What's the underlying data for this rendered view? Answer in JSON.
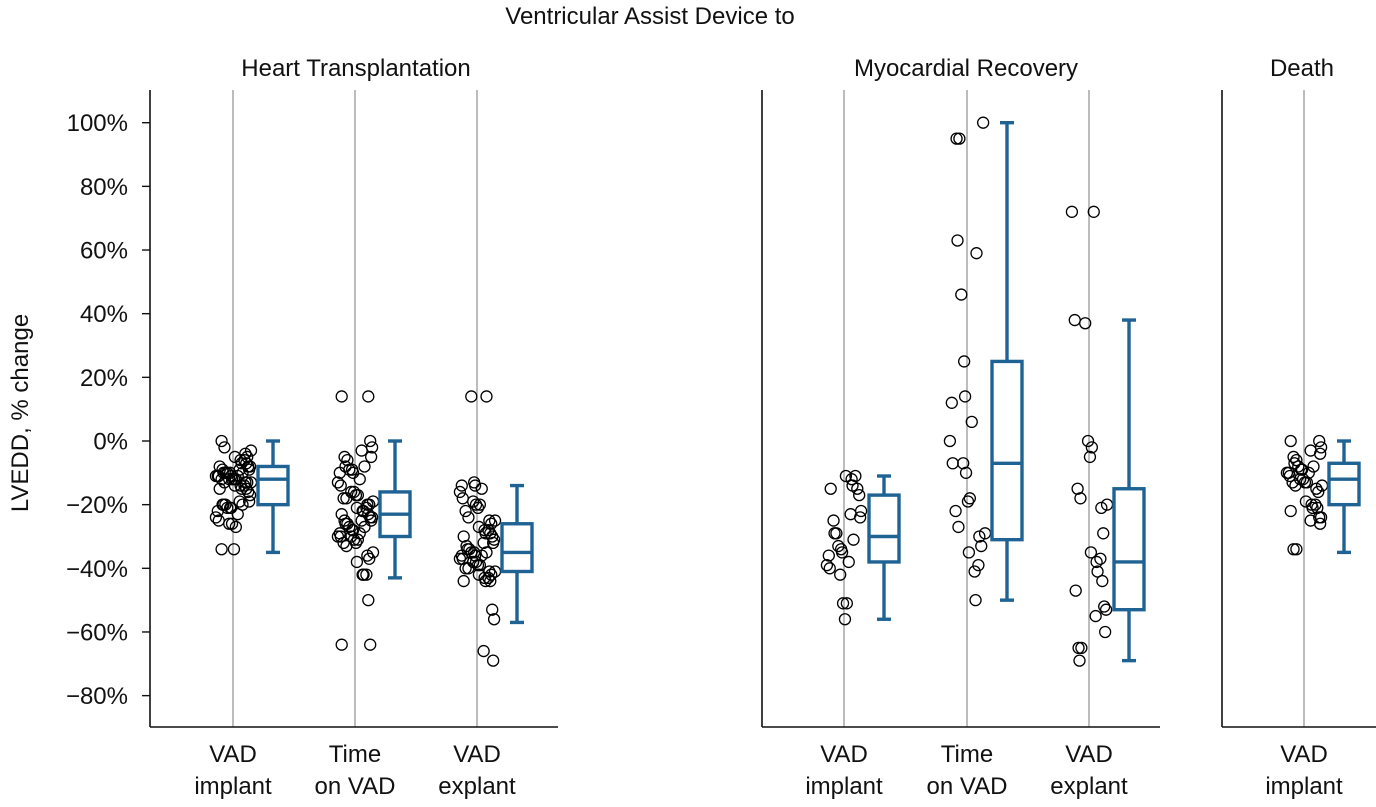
{
  "chart_data": {
    "type": "scatter",
    "title": "Ventricular Assist Device to",
    "ylabel": "LVEDD, % change",
    "ylim": [
      -90,
      110
    ],
    "yticks": [
      -80,
      -60,
      -40,
      -20,
      0,
      20,
      40,
      60,
      80,
      100
    ],
    "ytick_labels": [
      "−80%",
      "−60%",
      "−40%",
      "−20%",
      "0%",
      "20%",
      "40%",
      "60%",
      "80%",
      "100%"
    ],
    "colors": {
      "box": "#1f6394",
      "points": "#000000",
      "gridline": "#999999"
    },
    "panels": [
      {
        "title": "Heart Transplantation",
        "groups": [
          {
            "label": [
              "VAD",
              "implant"
            ],
            "points": [
              0,
              -2,
              -3,
              -4,
              -5,
              -5,
              -6,
              -6,
              -7,
              -7,
              -8,
              -8,
              -8,
              -9,
              -9,
              -9,
              -10,
              -10,
              -10,
              -10,
              -10,
              -11,
              -11,
              -11,
              -11,
              -11,
              -12,
              -12,
              -12,
              -12,
              -12,
              -13,
              -13,
              -13,
              -13,
              -14,
              -14,
              -14,
              -15,
              -15,
              -15,
              -16,
              -17,
              -19,
              -19,
              -20,
              -20,
              -20,
              -20,
              -21,
              -21,
              -21,
              -22,
              -23,
              -24,
              -25,
              -26,
              -26,
              -27,
              -34,
              -34
            ],
            "box": {
              "whisker_low": -35,
              "q1": -20,
              "median": -12,
              "q3": -8,
              "whisker_high": 0
            }
          },
          {
            "label": [
              "Time",
              "on VAD"
            ],
            "points": [
              14,
              14,
              0,
              -2,
              -3,
              -5,
              -5,
              -6,
              -8,
              -8,
              -9,
              -9,
              -10,
              -10,
              -12,
              -13,
              -14,
              -16,
              -16,
              -17,
              -17,
              -18,
              -18,
              -19,
              -20,
              -20,
              -21,
              -21,
              -22,
              -22,
              -23,
              -23,
              -24,
              -24,
              -25,
              -25,
              -25,
              -26,
              -26,
              -27,
              -27,
              -28,
              -28,
              -29,
              -29,
              -30,
              -30,
              -30,
              -31,
              -31,
              -32,
              -32,
              -33,
              -35,
              -36,
              -37,
              -38,
              -42,
              -42,
              -42,
              -50,
              -64,
              -64
            ],
            "box": {
              "whisker_low": -43,
              "q1": -30,
              "median": -23,
              "q3": -16,
              "whisker_high": 0
            }
          },
          {
            "label": [
              "VAD",
              "explant"
            ],
            "points": [
              14,
              14,
              -13,
              -14,
              -14,
              -15,
              -16,
              -18,
              -19,
              -20,
              -20,
              -21,
              -22,
              -24,
              -25,
              -25,
              -26,
              -27,
              -28,
              -28,
              -29,
              -29,
              -30,
              -30,
              -31,
              -32,
              -32,
              -33,
              -34,
              -34,
              -35,
              -35,
              -35,
              -36,
              -36,
              -36,
              -37,
              -37,
              -38,
              -38,
              -39,
              -39,
              -40,
              -40,
              -41,
              -41,
              -42,
              -42,
              -43,
              -43,
              -44,
              -44,
              -44,
              -53,
              -56,
              -66,
              -69
            ],
            "box": {
              "whisker_low": -57,
              "q1": -41,
              "median": -35,
              "q3": -26,
              "whisker_high": -14
            }
          }
        ]
      },
      {
        "title": "Myocardial Recovery",
        "groups": [
          {
            "label": [
              "VAD",
              "implant"
            ],
            "points": [
              -11,
              -11,
              -12,
              -14,
              -15,
              -15,
              -17,
              -22,
              -23,
              -24,
              -25,
              -29,
              -29,
              -31,
              -33,
              -34,
              -35,
              -36,
              -38,
              -39,
              -40,
              -42,
              -51,
              -51,
              -56
            ],
            "box": {
              "whisker_low": -56,
              "q1": -38,
              "median": -30,
              "q3": -17,
              "whisker_high": -11
            }
          },
          {
            "label": [
              "Time",
              "on VAD"
            ],
            "points": [
              100,
              95,
              95,
              63,
              59,
              46,
              25,
              14,
              12,
              6,
              0,
              -7,
              -7,
              -10,
              -18,
              -19,
              -22,
              -27,
              -29,
              -30,
              -33,
              -35,
              -39,
              -41,
              -50
            ],
            "box": {
              "whisker_low": -50,
              "q1": -31,
              "median": -7,
              "q3": 25,
              "whisker_high": 100
            }
          },
          {
            "label": [
              "VAD",
              "explant"
            ],
            "points": [
              72,
              72,
              38,
              37,
              0,
              -2,
              -5,
              -15,
              -18,
              -20,
              -21,
              -29,
              -35,
              -37,
              -38,
              -41,
              -44,
              -47,
              -52,
              -53,
              -55,
              -60,
              -65,
              -65,
              -69
            ],
            "box": {
              "whisker_low": -69,
              "q1": -53,
              "median": -38,
              "q3": -15,
              "whisker_high": 38
            }
          }
        ]
      },
      {
        "title": "Death",
        "groups": [
          {
            "label": [
              "VAD",
              "implant"
            ],
            "points": [
              0,
              0,
              -2,
              -3,
              -4,
              -5,
              -6,
              -7,
              -8,
              -8,
              -9,
              -9,
              -10,
              -10,
              -10,
              -11,
              -12,
              -12,
              -13,
              -13,
              -13,
              -14,
              -14,
              -15,
              -16,
              -19,
              -20,
              -20,
              -21,
              -21,
              -22,
              -24,
              -24,
              -25,
              -26,
              -34,
              -34
            ],
            "box": {
              "whisker_low": -35,
              "q1": -20,
              "median": -12,
              "q3": -7,
              "whisker_high": 0
            }
          }
        ]
      }
    ]
  }
}
